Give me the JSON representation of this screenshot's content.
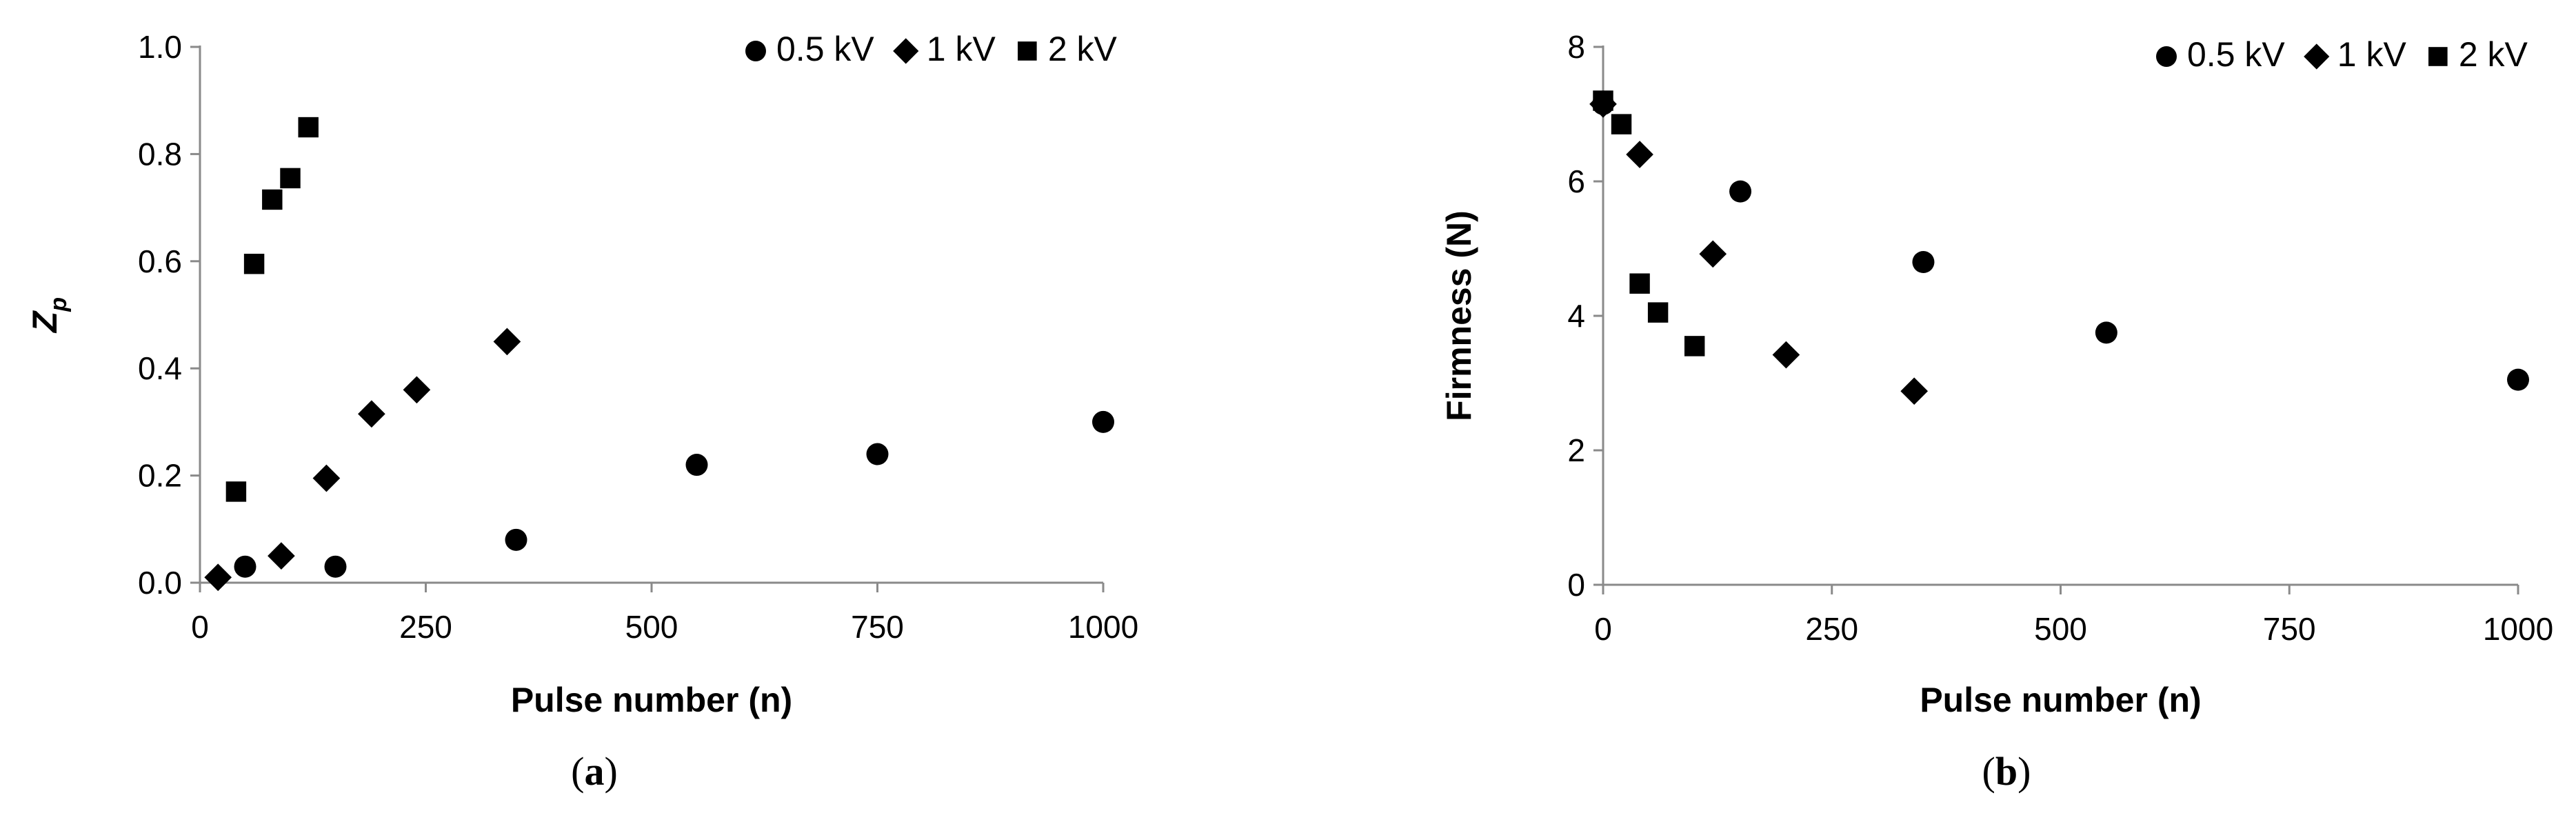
{
  "chart_data": [
    {
      "type": "scatter",
      "panel_label": "(a)",
      "panel_letter": "a",
      "xlabel": "Pulse number (n)",
      "ylabel": "Z",
      "ylabel_subscript": "p",
      "xlim": [
        0,
        1000
      ],
      "ylim": [
        0,
        1.0
      ],
      "xticks": [
        "0",
        "250",
        "500",
        "750",
        "1000"
      ],
      "xtick_values": [
        0,
        250,
        500,
        750,
        1000
      ],
      "yticks": [
        "0.0",
        "0.2",
        "0.4",
        "0.6",
        "0.8",
        "1.0"
      ],
      "ytick_values": [
        0,
        0.2,
        0.4,
        0.6,
        0.8,
        1.0
      ],
      "grid": false,
      "legend_position": "top-right",
      "series": [
        {
          "name": "0.5 kV",
          "marker": "circle",
          "points": [
            [
              50,
              0.03
            ],
            [
              150,
              0.03
            ],
            [
              350,
              0.08
            ],
            [
              550,
              0.22
            ],
            [
              750,
              0.24
            ],
            [
              1000,
              0.3
            ]
          ]
        },
        {
          "name": "1 kV",
          "marker": "diamond",
          "points": [
            [
              20,
              0.01
            ],
            [
              90,
              0.05
            ],
            [
              140,
              0.195
            ],
            [
              190,
              0.315
            ],
            [
              240,
              0.36
            ],
            [
              340,
              0.45
            ]
          ]
        },
        {
          "name": "2 kV",
          "marker": "square",
          "points": [
            [
              40,
              0.17
            ],
            [
              60,
              0.595
            ],
            [
              80,
              0.715
            ],
            [
              100,
              0.755
            ],
            [
              120,
              0.85
            ]
          ]
        }
      ]
    },
    {
      "type": "scatter",
      "panel_label": "(b)",
      "panel_letter": "b",
      "xlabel": "Pulse number (n)",
      "ylabel": "Firmness (N)",
      "ylabel_subscript": "",
      "xlim": [
        0,
        1000
      ],
      "ylim": [
        0,
        8
      ],
      "xticks": [
        "0",
        "250",
        "500",
        "750",
        "1000"
      ],
      "xtick_values": [
        0,
        250,
        500,
        750,
        1000
      ],
      "yticks": [
        "0",
        "2",
        "4",
        "6",
        "8"
      ],
      "ytick_values": [
        0,
        2,
        4,
        6,
        8
      ],
      "grid": false,
      "legend_position": "top-right",
      "series": [
        {
          "name": "0.5 kV",
          "marker": "circle",
          "points": [
            [
              0,
              7.15
            ],
            [
              150,
              5.85
            ],
            [
              350,
              4.8
            ],
            [
              550,
              3.75
            ],
            [
              1000,
              3.05
            ]
          ]
        },
        {
          "name": "1 kV",
          "marker": "diamond",
          "points": [
            [
              0,
              7.15
            ],
            [
              40,
              6.4
            ],
            [
              120,
              4.92
            ],
            [
              200,
              3.42
            ],
            [
              340,
              2.88
            ]
          ]
        },
        {
          "name": "2 kV",
          "marker": "square",
          "points": [
            [
              0,
              7.2
            ],
            [
              20,
              6.85
            ],
            [
              40,
              4.48
            ],
            [
              60,
              4.05
            ],
            [
              100,
              3.55
            ]
          ]
        }
      ]
    }
  ]
}
